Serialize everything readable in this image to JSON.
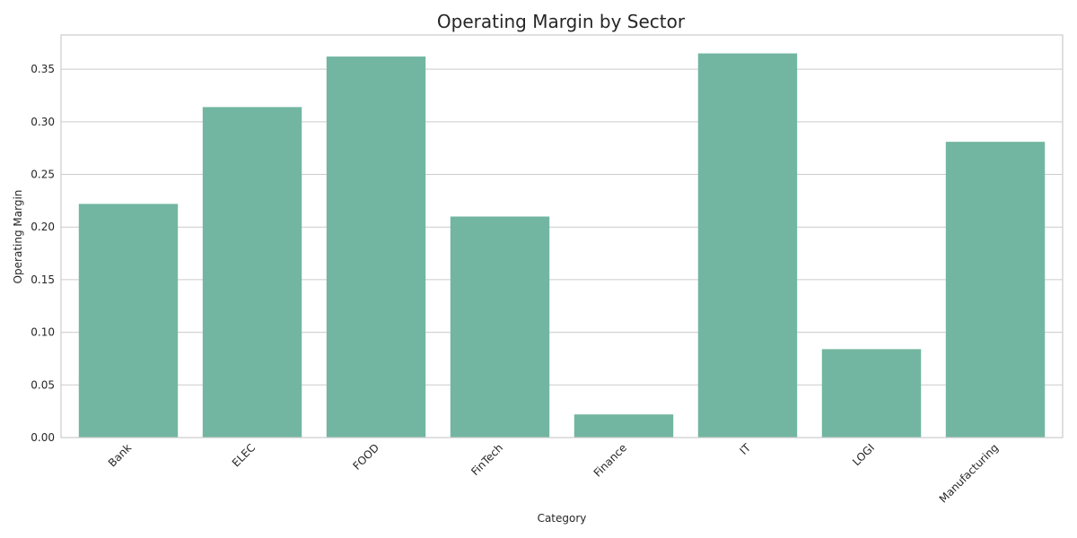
{
  "chart_data": {
    "type": "bar",
    "title": "Operating Margin by Sector",
    "xlabel": "Category",
    "ylabel": "Operating Margin",
    "categories": [
      "Bank",
      "ELEC",
      "FOOD",
      "FinTech",
      "Finance",
      "IT",
      "LOGI",
      "Manufacturing"
    ],
    "values": [
      0.222,
      0.314,
      0.362,
      0.21,
      0.022,
      0.365,
      0.084,
      0.281
    ],
    "ylim": [
      0,
      0.3825
    ],
    "yticks": [
      "0.00",
      "0.05",
      "0.10",
      "0.15",
      "0.20",
      "0.25",
      "0.30",
      "0.35"
    ],
    "ytick_values": [
      0,
      0.05,
      0.1,
      0.15,
      0.2,
      0.25,
      0.3,
      0.35
    ],
    "bar_color": "#72b6a1",
    "grid": true,
    "legend": "none"
  }
}
